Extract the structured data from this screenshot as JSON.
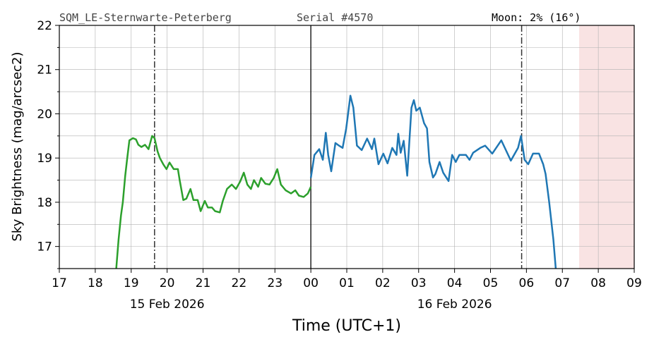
{
  "header": {
    "station": "SQM_LE-Sternwarte-Peterberg",
    "serial": "Serial #4570",
    "moon": "Moon: 2% (16°)"
  },
  "chart_data": {
    "type": "line",
    "xlabel": "Time (UTC+1)",
    "ylabel": "Sky Brightness (mag/arcsec2)",
    "xlim": [
      "2026-02-15T17:00",
      "2026-02-16T09:00"
    ],
    "ylim": [
      16.5,
      22
    ],
    "grid": true,
    "y_ticks": [
      "17",
      "18",
      "19",
      "20",
      "21",
      "22"
    ],
    "x_ticks": [
      "17",
      "18",
      "19",
      "20",
      "21",
      "22",
      "23",
      "00",
      "01",
      "02",
      "03",
      "04",
      "05",
      "06",
      "07",
      "08",
      "09"
    ],
    "date_labels": [
      {
        "text": "15 Feb 2026",
        "at": "2026-02-15T20:00"
      },
      {
        "text": "16 Feb 2026",
        "at": "2026-02-16T04:00"
      }
    ],
    "vlines": [
      {
        "at": "2026-02-15T19:39",
        "style": "dashdot"
      },
      {
        "at": "2026-02-16T00:00",
        "style": "solid"
      },
      {
        "at": "2026-02-16T05:52",
        "style": "dashdot"
      }
    ],
    "shaded_region": {
      "from": "2026-02-16T07:28",
      "to": "2026-02-16T09:00",
      "color": "#f9e3e3"
    },
    "series": [
      {
        "color": "#2ca02c",
        "points": [
          [
            "2026-02-15T18:35",
            16.5
          ],
          [
            "2026-02-15T18:39",
            17.16
          ],
          [
            "2026-02-15T18:43",
            17.7
          ],
          [
            "2026-02-15T18:46",
            18.0
          ],
          [
            "2026-02-15T18:50",
            18.6
          ],
          [
            "2026-02-15T18:53",
            18.95
          ],
          [
            "2026-02-15T18:57",
            19.4
          ],
          [
            "2026-02-15T19:03",
            19.45
          ],
          [
            "2026-02-15T19:08",
            19.42
          ],
          [
            "2026-02-15T19:12",
            19.3
          ],
          [
            "2026-02-15T19:17",
            19.25
          ],
          [
            "2026-02-15T19:23",
            19.3
          ],
          [
            "2026-02-15T19:29",
            19.2
          ],
          [
            "2026-02-15T19:35",
            19.5
          ],
          [
            "2026-02-15T19:39",
            19.45
          ],
          [
            "2026-02-15T19:44",
            19.15
          ],
          [
            "2026-02-15T19:48",
            19.0
          ],
          [
            "2026-02-15T19:54",
            18.85
          ],
          [
            "2026-02-15T19:59",
            18.75
          ],
          [
            "2026-02-15T20:04",
            18.9
          ],
          [
            "2026-02-15T20:11",
            18.75
          ],
          [
            "2026-02-15T20:18",
            18.75
          ],
          [
            "2026-02-15T20:21",
            18.5
          ],
          [
            "2026-02-15T20:27",
            18.05
          ],
          [
            "2026-02-15T20:32",
            18.08
          ],
          [
            "2026-02-15T20:39",
            18.3
          ],
          [
            "2026-02-15T20:44",
            18.05
          ],
          [
            "2026-02-15T20:51",
            18.05
          ],
          [
            "2026-02-15T20:56",
            17.8
          ],
          [
            "2026-02-15T21:03",
            18.03
          ],
          [
            "2026-02-15T21:08",
            17.88
          ],
          [
            "2026-02-15T21:15",
            17.88
          ],
          [
            "2026-02-15T21:20",
            17.8
          ],
          [
            "2026-02-15T21:28",
            17.77
          ],
          [
            "2026-02-15T21:33",
            18.03
          ],
          [
            "2026-02-15T21:40",
            18.3
          ],
          [
            "2026-02-15T21:48",
            18.4
          ],
          [
            "2026-02-15T21:55",
            18.3
          ],
          [
            "2026-02-15T22:02",
            18.47
          ],
          [
            "2026-02-15T22:08",
            18.67
          ],
          [
            "2026-02-15T22:14",
            18.4
          ],
          [
            "2026-02-15T22:20",
            18.3
          ],
          [
            "2026-02-15T22:25",
            18.5
          ],
          [
            "2026-02-15T22:32",
            18.35
          ],
          [
            "2026-02-15T22:37",
            18.55
          ],
          [
            "2026-02-15T22:44",
            18.42
          ],
          [
            "2026-02-15T22:51",
            18.4
          ],
          [
            "2026-02-15T22:58",
            18.55
          ],
          [
            "2026-02-15T23:04",
            18.75
          ],
          [
            "2026-02-15T23:10",
            18.4
          ],
          [
            "2026-02-15T23:18",
            18.27
          ],
          [
            "2026-02-15T23:27",
            18.2
          ],
          [
            "2026-02-15T23:34",
            18.27
          ],
          [
            "2026-02-15T23:40",
            18.15
          ],
          [
            "2026-02-15T23:48",
            18.12
          ],
          [
            "2026-02-15T23:55",
            18.2
          ],
          [
            "2026-02-16T00:00",
            18.35
          ]
        ]
      },
      {
        "color": "#1f77b4",
        "points": [
          [
            "2026-02-16T00:00",
            18.55
          ],
          [
            "2026-02-16T00:06",
            19.07
          ],
          [
            "2026-02-16T00:14",
            19.2
          ],
          [
            "2026-02-16T00:20",
            18.96
          ],
          [
            "2026-02-16T00:25",
            19.57
          ],
          [
            "2026-02-16T00:29",
            19.07
          ],
          [
            "2026-02-16T00:34",
            18.7
          ],
          [
            "2026-02-16T00:41",
            19.34
          ],
          [
            "2026-02-16T00:47",
            19.28
          ],
          [
            "2026-02-16T00:53",
            19.23
          ],
          [
            "2026-02-16T00:59",
            19.67
          ],
          [
            "2026-02-16T01:06",
            20.41
          ],
          [
            "2026-02-16T01:11",
            20.14
          ],
          [
            "2026-02-16T01:17",
            19.28
          ],
          [
            "2026-02-16T01:25",
            19.18
          ],
          [
            "2026-02-16T01:34",
            19.44
          ],
          [
            "2026-02-16T01:42",
            19.2
          ],
          [
            "2026-02-16T01:46",
            19.44
          ],
          [
            "2026-02-16T01:53",
            18.86
          ],
          [
            "2026-02-16T02:01",
            19.1
          ],
          [
            "2026-02-16T02:08",
            18.88
          ],
          [
            "2026-02-16T02:16",
            19.23
          ],
          [
            "2026-02-16T02:23",
            19.07
          ],
          [
            "2026-02-16T02:26",
            19.55
          ],
          [
            "2026-02-16T02:30",
            19.12
          ],
          [
            "2026-02-16T02:35",
            19.39
          ],
          [
            "2026-02-16T02:41",
            18.6
          ],
          [
            "2026-02-16T02:48",
            20.14
          ],
          [
            "2026-02-16T02:52",
            20.31
          ],
          [
            "2026-02-16T02:56",
            20.07
          ],
          [
            "2026-02-16T03:02",
            20.14
          ],
          [
            "2026-02-16T03:09",
            19.79
          ],
          [
            "2026-02-16T03:14",
            19.67
          ],
          [
            "2026-02-16T03:18",
            18.91
          ],
          [
            "2026-02-16T03:24",
            18.56
          ],
          [
            "2026-02-16T03:28",
            18.64
          ],
          [
            "2026-02-16T03:35",
            18.91
          ],
          [
            "2026-02-16T03:41",
            18.67
          ],
          [
            "2026-02-16T03:50",
            18.48
          ],
          [
            "2026-02-16T03:56",
            19.07
          ],
          [
            "2026-02-16T04:02",
            18.91
          ],
          [
            "2026-02-16T04:08",
            19.07
          ],
          [
            "2026-02-16T04:19",
            19.07
          ],
          [
            "2026-02-16T04:25",
            18.96
          ],
          [
            "2026-02-16T04:31",
            19.12
          ],
          [
            "2026-02-16T04:43",
            19.23
          ],
          [
            "2026-02-16T04:51",
            19.28
          ],
          [
            "2026-02-16T05:03",
            19.1
          ],
          [
            "2026-02-16T05:18",
            19.4
          ],
          [
            "2026-02-16T05:34",
            18.94
          ],
          [
            "2026-02-16T05:46",
            19.23
          ],
          [
            "2026-02-16T05:51",
            19.5
          ],
          [
            "2026-02-16T05:57",
            18.96
          ],
          [
            "2026-02-16T06:03",
            18.86
          ],
          [
            "2026-02-16T06:11",
            19.1
          ],
          [
            "2026-02-16T06:21",
            19.1
          ],
          [
            "2026-02-16T06:28",
            18.86
          ],
          [
            "2026-02-16T06:32",
            18.64
          ],
          [
            "2026-02-16T06:38",
            18.0
          ],
          [
            "2026-02-16T06:45",
            17.16
          ],
          [
            "2026-02-16T06:49",
            16.5
          ]
        ]
      }
    ]
  }
}
